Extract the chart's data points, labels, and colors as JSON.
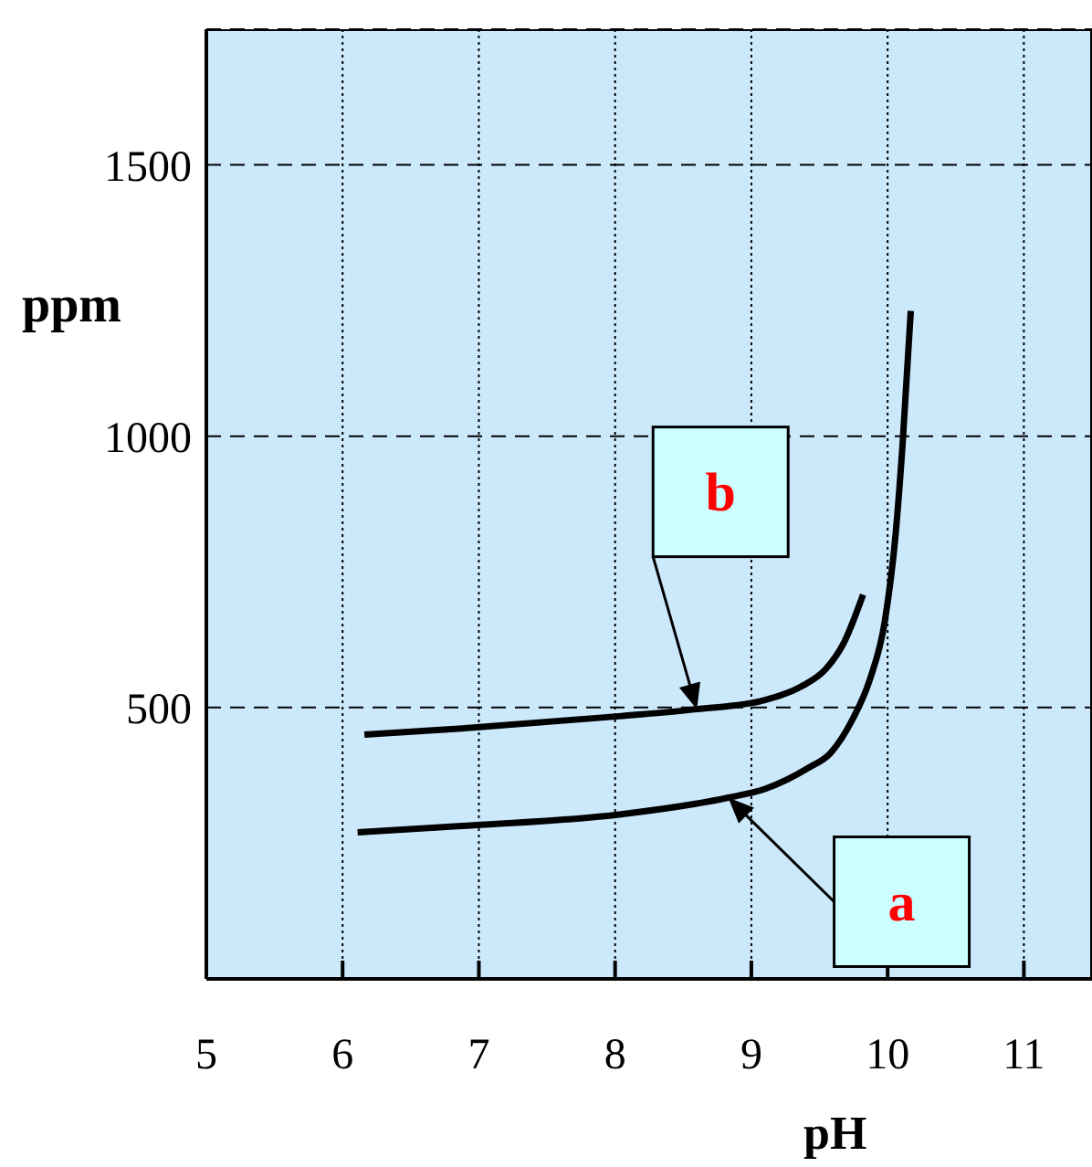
{
  "chart_data": {
    "type": "line",
    "xlabel": "pH",
    "ylabel": "ppm",
    "xlim": [
      5,
      11.5
    ],
    "ylim": [
      0,
      1750
    ],
    "xticks": [
      5,
      6,
      7,
      8,
      9,
      10,
      11
    ],
    "yticks": [
      500,
      1000,
      1500
    ],
    "grid": true,
    "series": [
      {
        "name": "a",
        "color": "#000000",
        "x": [
          6.11,
          6.96,
          8.03,
          8.83,
          9.1,
          9.42,
          9.58,
          9.74,
          9.87,
          9.98,
          10.06,
          10.11,
          10.17
        ],
        "values": [
          270,
          283,
          303,
          334,
          350,
          389,
          416,
          477,
          552,
          660,
          823,
          986,
          1231
        ]
      },
      {
        "name": "b",
        "color": "#000000",
        "x": [
          6.16,
          6.96,
          8.03,
          8.6,
          9.1,
          9.36,
          9.55,
          9.68,
          9.82
        ],
        "values": [
          450,
          463,
          484,
          497,
          514,
          538,
          572,
          620,
          708
        ]
      }
    ]
  }
}
